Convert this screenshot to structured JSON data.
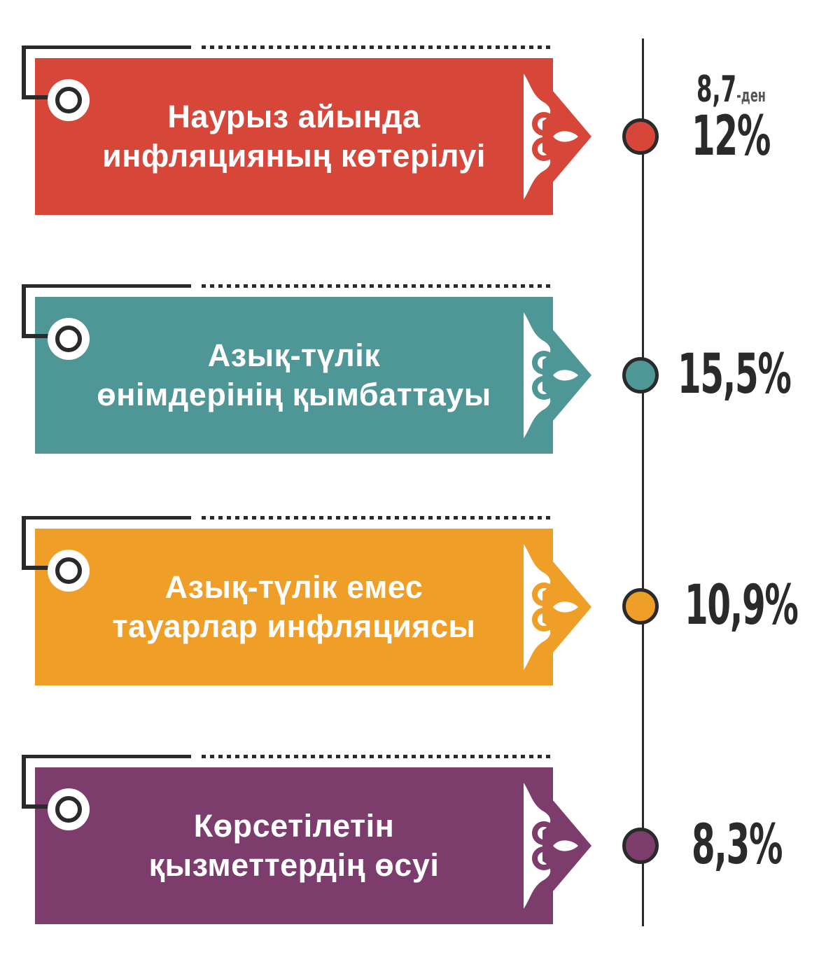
{
  "items": [
    {
      "label_line1": "Наурыз айында",
      "label_line2": "инфляцияның көтерілуі",
      "previous": "8,7",
      "previous_suffix": "-ден",
      "value": "12%",
      "color": "#d6473a"
    },
    {
      "label_line1": "Азық-түлік",
      "label_line2": "өнімдерінің қымбаттауы",
      "value": "15,5%",
      "color": "#4f9696"
    },
    {
      "label_line1": "Азық-түлік емес",
      "label_line2": "тауарлар инфляциясы",
      "value": "10,9%",
      "color": "#ef9e27"
    },
    {
      "label_line1": "Көрсетілетін",
      "label_line2": "қызметтердің өсуі",
      "value": "8,3%",
      "color": "#7d3d6c"
    }
  ]
}
